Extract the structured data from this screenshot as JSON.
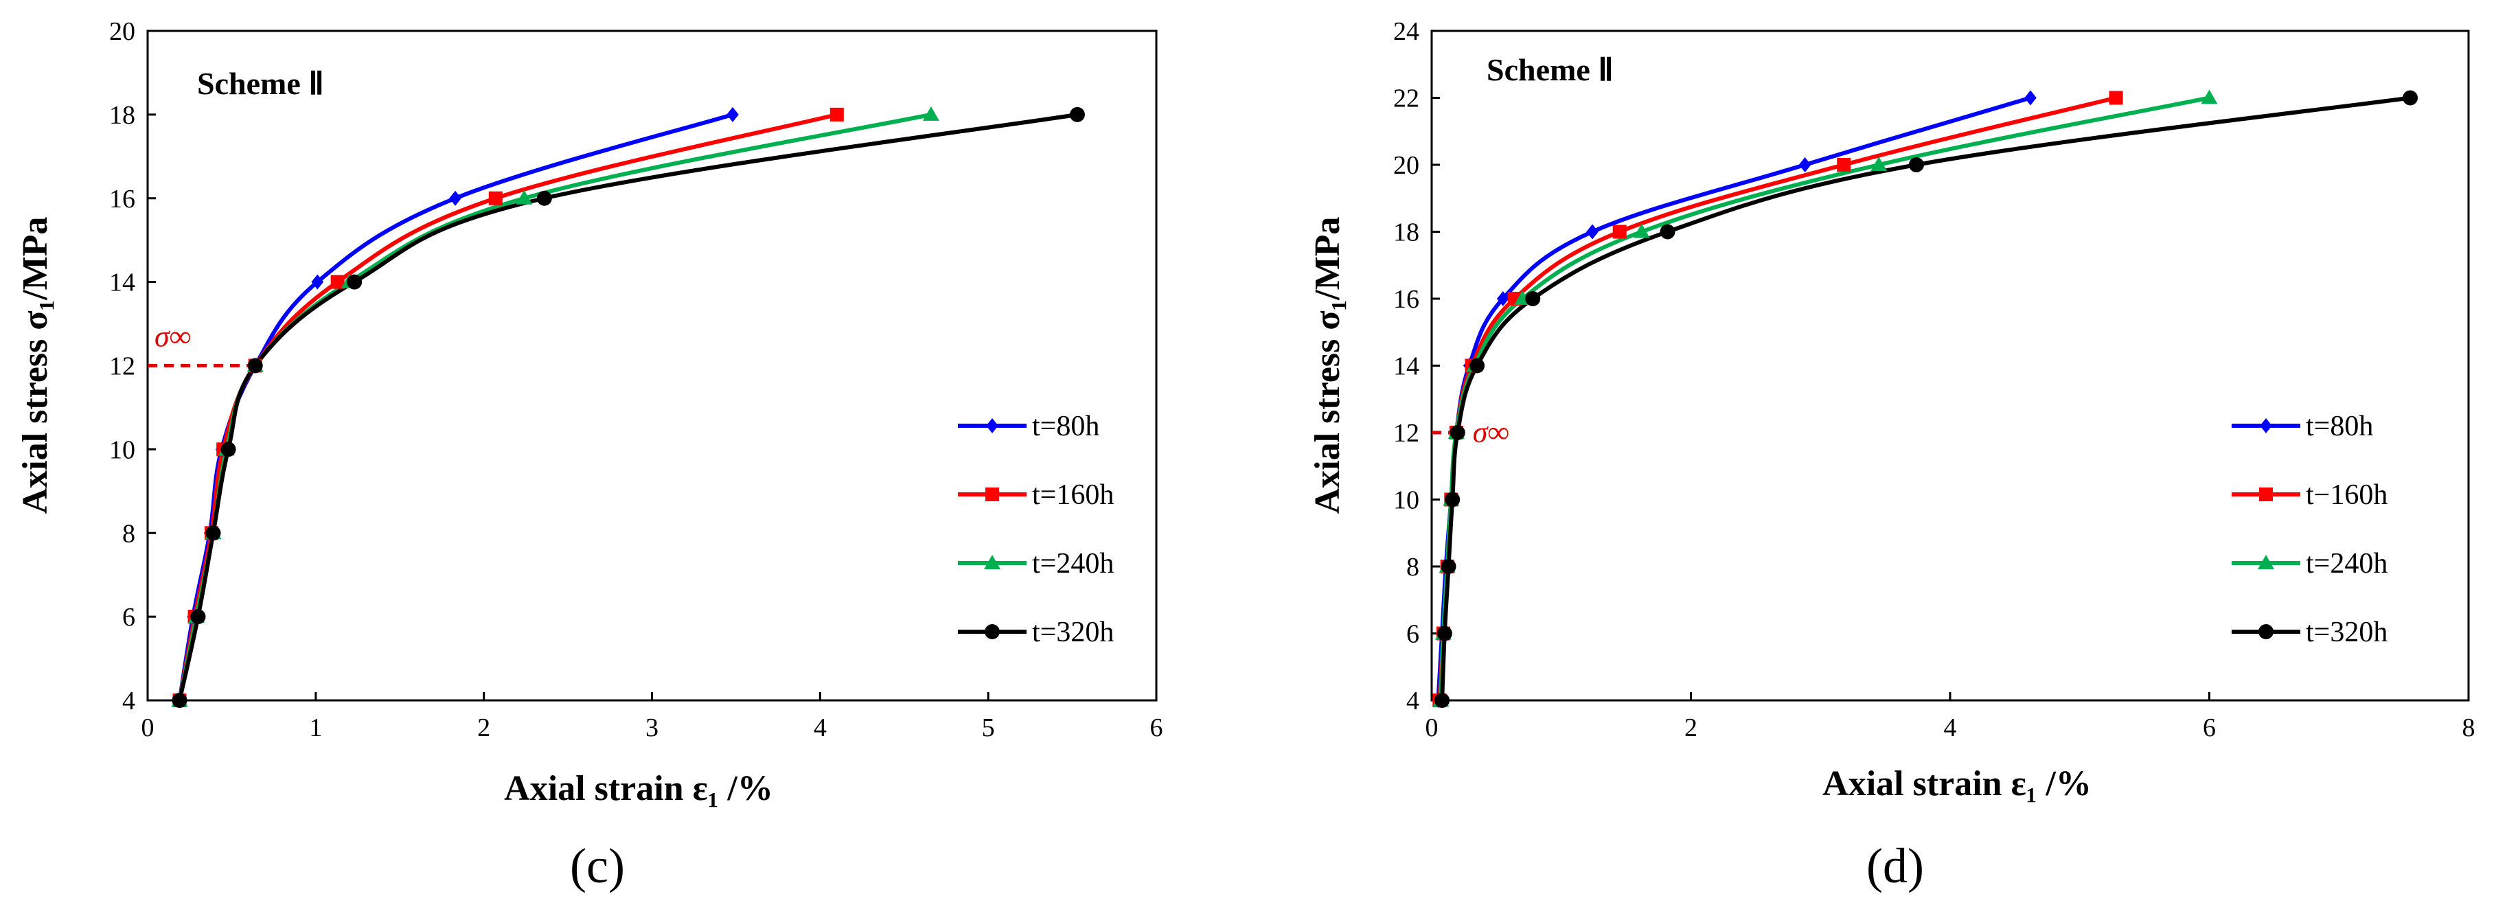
{
  "colors": {
    "t80": "#0000ff",
    "t160": "#ff0000",
    "t240": "#00b050",
    "t320": "#000000",
    "sigma": "#e00000"
  },
  "chart_data": [
    {
      "id": "c",
      "type": "line",
      "caption": "(c)",
      "title": "Scheme Ⅱ",
      "xlabel": "Axial strain ε₁ /%",
      "ylabel": "Axial stress σ₁/MPa",
      "xlim": [
        0,
        6
      ],
      "ylim": [
        4,
        20
      ],
      "xticks": [
        0,
        1,
        2,
        3,
        4,
        5,
        6
      ],
      "yticks": [
        4,
        6,
        8,
        10,
        12,
        14,
        16,
        18,
        20
      ],
      "legend_position": "right",
      "annotation": {
        "label": "σ∞",
        "value": 12
      },
      "series": [
        {
          "name": "t=80h",
          "marker": "diamond",
          "color": "#0000ff",
          "x": [
            0.19,
            0.27,
            0.37,
            0.44,
            0.64,
            1.01,
            1.83,
            3.48
          ],
          "y": [
            4,
            6,
            8,
            10,
            12,
            14,
            16,
            18
          ]
        },
        {
          "name": "t=160h",
          "marker": "square",
          "color": "#ff0000",
          "x": [
            0.19,
            0.28,
            0.38,
            0.45,
            0.64,
            1.13,
            2.07,
            4.1
          ],
          "y": [
            4,
            6,
            8,
            10,
            12,
            14,
            16,
            18
          ]
        },
        {
          "name": "t=240h",
          "marker": "triangle",
          "color": "#00b050",
          "x": [
            0.19,
            0.29,
            0.39,
            0.47,
            0.64,
            1.2,
            2.24,
            4.66
          ],
          "y": [
            4,
            6,
            8,
            10,
            12,
            14,
            16,
            18
          ]
        },
        {
          "name": "t=320h",
          "marker": "circle",
          "color": "#000000",
          "x": [
            0.19,
            0.3,
            0.39,
            0.48,
            0.64,
            1.23,
            2.36,
            5.53
          ],
          "y": [
            4,
            6,
            8,
            10,
            12,
            14,
            16,
            18
          ]
        }
      ]
    },
    {
      "id": "d",
      "type": "line",
      "caption": "(d)",
      "title": "Scheme Ⅱ",
      "xlabel": "Axial strain ε₁ /%",
      "ylabel": "Axial stress σ₁/MPa",
      "xlim": [
        0,
        8
      ],
      "ylim": [
        4,
        24
      ],
      "xticks": [
        0,
        2,
        4,
        6,
        8
      ],
      "yticks": [
        4,
        6,
        8,
        10,
        12,
        14,
        16,
        18,
        20,
        22,
        24
      ],
      "legend_position": "right",
      "annotation": {
        "label": "σ∞",
        "value": 12
      },
      "series": [
        {
          "name": "t=80h",
          "marker": "diamond",
          "color": "#0000ff",
          "x": [
            0.05,
            0.08,
            0.11,
            0.15,
            0.19,
            0.29,
            0.55,
            1.24,
            2.88,
            4.62
          ],
          "y": [
            4,
            6,
            8,
            10,
            12,
            14,
            16,
            18,
            20,
            22
          ]
        },
        {
          "name": "t−160h",
          "marker": "square",
          "color": "#ff0000",
          "x": [
            0.06,
            0.09,
            0.12,
            0.15,
            0.19,
            0.31,
            0.64,
            1.45,
            3.18,
            5.28
          ],
          "y": [
            4,
            6,
            8,
            10,
            12,
            14,
            16,
            18,
            20,
            22
          ]
        },
        {
          "name": "t=240h",
          "marker": "triangle",
          "color": "#00b050",
          "x": [
            0.07,
            0.09,
            0.12,
            0.15,
            0.19,
            0.33,
            0.7,
            1.62,
            3.45,
            6.0
          ],
          "y": [
            4,
            6,
            8,
            10,
            12,
            14,
            16,
            18,
            20,
            22
          ]
        },
        {
          "name": "t=320h",
          "marker": "circle",
          "color": "#000000",
          "x": [
            0.08,
            0.1,
            0.13,
            0.16,
            0.2,
            0.35,
            0.78,
            1.82,
            3.74,
            7.55
          ],
          "y": [
            4,
            6,
            8,
            10,
            12,
            14,
            16,
            18,
            20,
            22
          ]
        }
      ]
    }
  ]
}
